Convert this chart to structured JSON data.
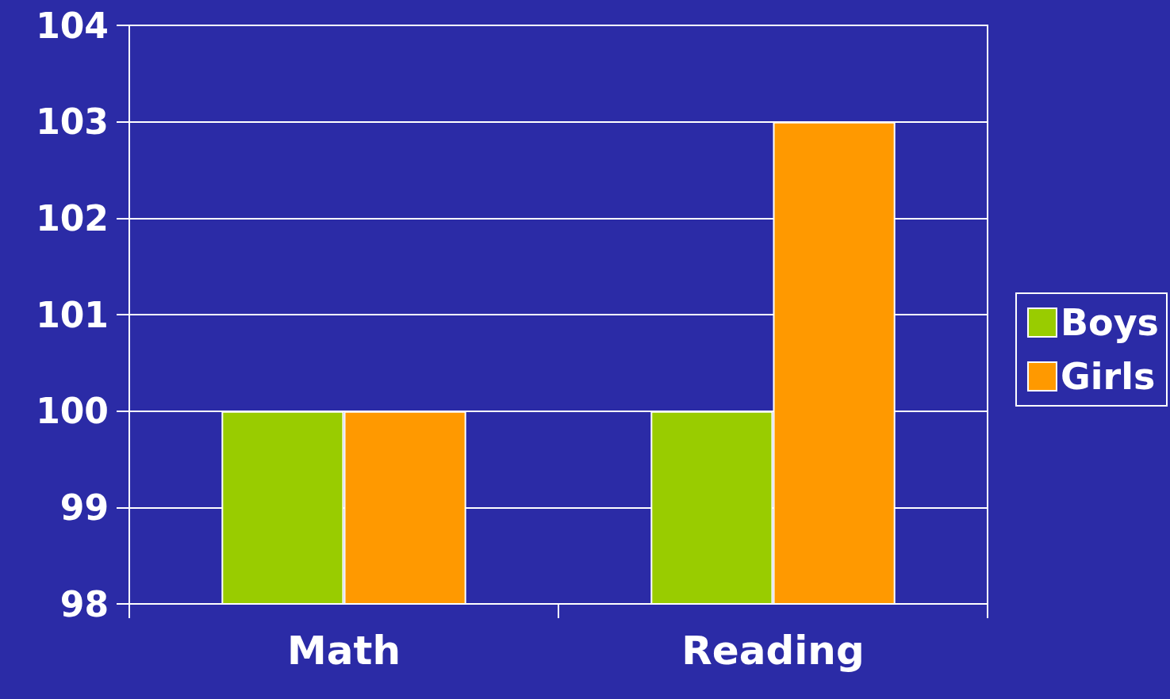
{
  "chart_data": {
    "type": "bar",
    "categories": [
      "Math",
      "Reading"
    ],
    "series": [
      {
        "name": "Boys",
        "color": "#99cc00",
        "values": [
          100,
          100
        ]
      },
      {
        "name": "Girls",
        "color": "#ff9900",
        "values": [
          100,
          103
        ]
      }
    ],
    "ylim": [
      98,
      104
    ],
    "yticks": [
      98,
      99,
      100,
      101,
      102,
      103,
      104
    ],
    "grid": "y",
    "legend": "right"
  }
}
